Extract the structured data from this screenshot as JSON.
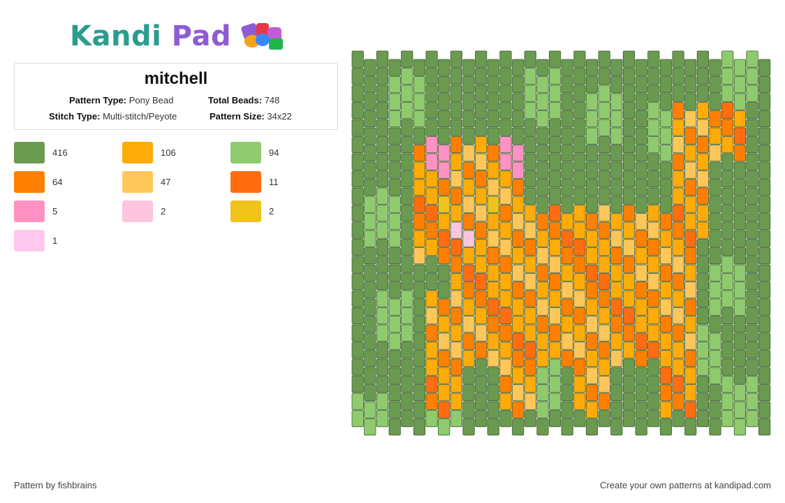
{
  "brand": {
    "name_part1": "Kandi",
    "name_part2": "Pad"
  },
  "pattern": {
    "title": "mitchell",
    "type_label": "Pattern Type:",
    "type_value": "Pony Bead",
    "beads_label": "Total Beads:",
    "beads_value": "748",
    "stitch_label": "Stitch Type:",
    "stitch_value": "Multi-stitch/Peyote",
    "size_label": "Pattern Size:",
    "size_value": "34x22"
  },
  "colors": {
    "dark_green": "#6a9a50",
    "light_green": "#8fcb6e",
    "orange": "#ff8000",
    "amber": "#ffab0a",
    "light_orange": "#ffc65a",
    "deep_orange": "#ff6d10",
    "pink": "#ff92c3",
    "light_pink": "#ffc4de",
    "yellow": "#eec31b",
    "pale_pink": "#ffc8ec"
  },
  "palette": [
    {
      "color": "#6a9a50",
      "count": "416"
    },
    {
      "color": "#ffab0a",
      "count": "106"
    },
    {
      "color": "#8fcb6e",
      "count": "94"
    },
    {
      "color": "#ff8000",
      "count": "64"
    },
    {
      "color": "#ffc65a",
      "count": "47"
    },
    {
      "color": "#ff6d10",
      "count": "11"
    },
    {
      "color": "#ff92c3",
      "count": "5"
    },
    {
      "color": "#ffc4de",
      "count": "2"
    },
    {
      "color": "#eec31b",
      "count": "2"
    },
    {
      "color": "#ffc8ec",
      "count": "1"
    }
  ],
  "footer": {
    "credit": "Pattern by fishbrains",
    "cta": "Create your own patterns at kandipad.com"
  }
}
